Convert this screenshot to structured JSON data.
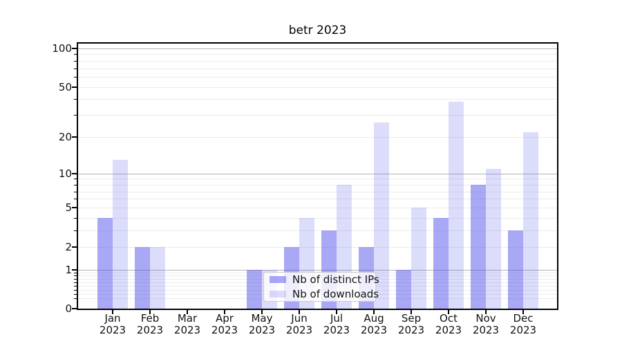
{
  "title": "betr 2023",
  "chart_data": {
    "type": "bar",
    "title": "betr 2023",
    "scale": "log1p",
    "grid": true,
    "categories": [
      "Jan 2023",
      "Feb 2023",
      "Mar 2023",
      "Apr 2023",
      "May 2023",
      "Jun 2023",
      "Jul 2023",
      "Aug 2023",
      "Sep 2023",
      "Oct 2023",
      "Nov 2023",
      "Dec 2023"
    ],
    "x_tick_lines": [
      [
        "Jan",
        "2023"
      ],
      [
        "Feb",
        "2023"
      ],
      [
        "Mar",
        "2023"
      ],
      [
        "Apr",
        "2023"
      ],
      [
        "May",
        "2023"
      ],
      [
        "Jun",
        "2023"
      ],
      [
        "Jul",
        "2023"
      ],
      [
        "Aug",
        "2023"
      ],
      [
        "Sep",
        "2023"
      ],
      [
        "Oct",
        "2023"
      ],
      [
        "Nov",
        "2023"
      ],
      [
        "Dec",
        "2023"
      ]
    ],
    "series": [
      {
        "name": "Nb of distinct IPs",
        "values": [
          4,
          2,
          0,
          0,
          1,
          2,
          3,
          2,
          1,
          4,
          8,
          3
        ]
      },
      {
        "name": "Nb of downloads",
        "values": [
          13,
          2,
          0,
          0,
          1,
          4,
          8,
          26,
          5,
          38,
          11,
          22
        ]
      }
    ],
    "ylim": [
      0,
      100
    ],
    "y_ticks": [
      0,
      1,
      2,
      5,
      10,
      20,
      50,
      100
    ],
    "y_major_gridlines": [
      1,
      10,
      100
    ],
    "y_minor_gridlines": [
      0.2,
      0.3,
      0.4,
      0.5,
      0.6,
      0.7,
      0.8,
      0.9,
      2,
      3,
      4,
      5,
      6,
      7,
      8,
      9,
      20,
      30,
      40,
      50,
      60,
      70,
      80,
      90
    ],
    "legend_position": "lower center"
  },
  "legend": {
    "items": [
      {
        "label": "Nb of distinct IPs",
        "color": "rgba(82,82,236,0.5)"
      },
      {
        "label": "Nb of downloads",
        "color": "rgba(82,82,236,0.2)"
      }
    ]
  },
  "colors": {
    "bar_base": "#5252EC",
    "bar_ips": "rgba(82,82,236,0.5)",
    "bar_downloads": "rgba(82,82,236,0.2)",
    "grid_major": "#b3b3b3",
    "grid_minor": "#ebebeb",
    "axis": "#000000"
  }
}
